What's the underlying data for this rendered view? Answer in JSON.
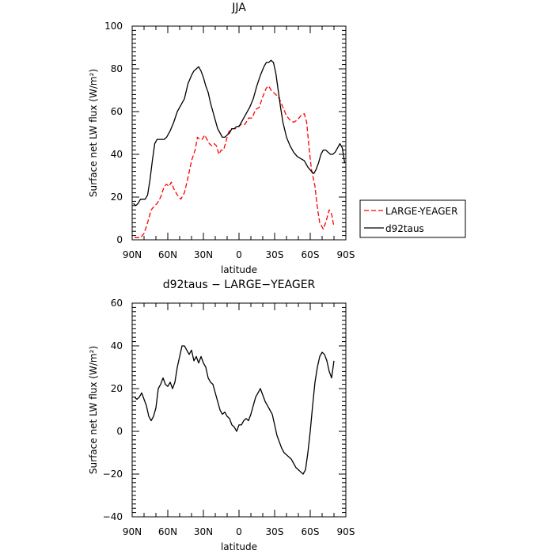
{
  "chart_data": [
    {
      "type": "line",
      "title": "JJA",
      "xlabel": "latitude",
      "ylabel": "Surface net LW flux (W/m²)",
      "xlim": [
        90,
        -90
      ],
      "ylim": [
        0,
        100
      ],
      "x_ticks": [
        90,
        60,
        30,
        0,
        -30,
        -60,
        -90
      ],
      "x_tick_labels": [
        "90N",
        "60N",
        "30N",
        "0",
        "30S",
        "60S",
        "90S"
      ],
      "y_ticks": [
        0,
        20,
        40,
        60,
        80,
        100
      ],
      "y_tick_labels": [
        "0",
        "20",
        "40",
        "60",
        "80",
        "100"
      ],
      "legend_position": "right-outside",
      "series": [
        {
          "name": "LARGE-YEAGER",
          "color": "#ff0000",
          "dash": "dashed",
          "x": [
            88,
            86,
            83,
            80,
            77,
            74,
            71,
            69,
            66,
            63,
            61,
            59,
            57,
            55,
            52,
            49,
            46,
            43,
            40,
            37,
            35,
            33,
            31,
            29,
            27,
            25,
            23,
            21,
            19,
            17,
            15,
            13,
            11,
            9,
            7,
            5,
            3,
            1,
            -2,
            -5,
            -8,
            -11,
            -14,
            -17,
            -20,
            -23,
            -25,
            -27,
            -29,
            -31,
            -34,
            -37,
            -40,
            -43,
            -46,
            -49,
            -52,
            -55,
            -57,
            -59,
            -61,
            -64,
            -66,
            -68,
            -71,
            -73,
            -76,
            -78,
            -80
          ],
          "y": [
            1,
            1,
            1,
            3,
            8,
            14,
            16,
            17,
            20,
            25,
            26,
            25,
            27,
            24,
            21,
            19,
            22,
            29,
            37,
            42,
            48,
            47,
            47,
            49,
            47,
            45,
            44,
            45,
            44,
            40,
            42,
            42,
            46,
            50,
            52,
            52,
            52,
            53,
            54,
            54,
            57,
            57,
            61,
            62,
            67,
            71,
            72,
            70,
            69,
            68,
            66,
            62,
            58,
            56,
            55,
            56,
            58,
            59,
            55,
            43,
            33,
            25,
            15,
            8,
            5,
            8,
            14,
            12,
            6
          ]
        },
        {
          "name": "d92taus",
          "color": "#000000",
          "dash": "solid",
          "x": [
            89,
            87,
            85,
            83,
            81,
            79,
            77,
            75,
            73,
            71,
            69,
            67,
            65,
            63,
            61,
            58,
            55,
            52,
            49,
            46,
            43,
            40,
            38,
            36,
            34,
            32,
            30,
            28,
            26,
            24,
            22,
            20,
            18,
            16,
            14,
            12,
            10,
            8,
            6,
            4,
            2,
            0,
            -2,
            -4,
            -6,
            -9,
            -12,
            -15,
            -18,
            -21,
            -23,
            -25,
            -27,
            -29,
            -31,
            -33,
            -35,
            -37,
            -40,
            -43,
            -46,
            -49,
            -52,
            -55,
            -58,
            -61,
            -63,
            -65,
            -67,
            -69,
            -71,
            -73,
            -75,
            -77,
            -79,
            -81,
            -83,
            -85,
            -87,
            -89
          ],
          "y": [
            17,
            16,
            17,
            19,
            19,
            19,
            21,
            28,
            37,
            45,
            47,
            47,
            47,
            47,
            48,
            51,
            55,
            60,
            63,
            66,
            73,
            77,
            79,
            80,
            81,
            79,
            76,
            72,
            69,
            64,
            60,
            56,
            52,
            50,
            48,
            48,
            49,
            50,
            52,
            52,
            53,
            53,
            55,
            57,
            59,
            62,
            66,
            72,
            77,
            81,
            83,
            83,
            84,
            83,
            78,
            70,
            62,
            55,
            48,
            44,
            41,
            39,
            38,
            37,
            34,
            32,
            31,
            33,
            36,
            40,
            42,
            42,
            41,
            40,
            40,
            41,
            43,
            45,
            43,
            36
          ]
        }
      ]
    },
    {
      "type": "line",
      "title": "d92taus − LARGE−YEAGER",
      "xlabel": "latitude",
      "ylabel": "Surface net LW flux (W/m²)",
      "xlim": [
        90,
        -90
      ],
      "ylim": [
        -40,
        60
      ],
      "x_ticks": [
        90,
        60,
        30,
        0,
        -30,
        -60,
        -90
      ],
      "x_tick_labels": [
        "90N",
        "60N",
        "30N",
        "0",
        "30S",
        "60S",
        "90S"
      ],
      "y_ticks": [
        -40,
        -20,
        0,
        20,
        40,
        60
      ],
      "y_tick_labels": [
        "−40",
        "−20",
        "0",
        "20",
        "40",
        "60"
      ],
      "series": [
        {
          "color": "#000000",
          "dash": "solid",
          "x": [
            88,
            86,
            84,
            82,
            80,
            78,
            76,
            74,
            72,
            70,
            68,
            66,
            64,
            62,
            60,
            58,
            56,
            54,
            52,
            50,
            48,
            46,
            44,
            42,
            40,
            38,
            36,
            34,
            32,
            30,
            28,
            26,
            24,
            22,
            20,
            18,
            16,
            14,
            12,
            10,
            8,
            6,
            4,
            2,
            0,
            -2,
            -4,
            -6,
            -8,
            -10,
            -12,
            -14,
            -16,
            -18,
            -20,
            -22,
            -24,
            -26,
            -28,
            -30,
            -32,
            -34,
            -36,
            -38,
            -40,
            -42,
            -44,
            -46,
            -48,
            -50,
            -52,
            -54,
            -56,
            -58,
            -60,
            -62,
            -64,
            -66,
            -68,
            -70,
            -72,
            -74,
            -76,
            -78,
            -80
          ],
          "y": [
            16,
            15,
            16,
            18,
            15,
            12,
            7,
            5,
            7,
            11,
            20,
            22,
            25,
            22,
            21,
            23,
            20,
            23,
            30,
            35,
            40,
            40,
            38,
            36,
            38,
            33,
            35,
            32,
            35,
            32,
            30,
            25,
            23,
            22,
            18,
            14,
            10,
            8,
            9,
            7,
            6,
            3,
            2,
            0,
            3,
            3,
            5,
            6,
            5,
            8,
            12,
            16,
            18,
            20,
            17,
            14,
            12,
            10,
            8,
            3,
            -2,
            -5,
            -8,
            -10,
            -11,
            -12,
            -13,
            -15,
            -17,
            -18,
            -19,
            -20,
            -18,
            -10,
            0,
            12,
            23,
            30,
            35,
            37,
            36,
            33,
            28,
            25,
            33
          ]
        }
      ]
    }
  ]
}
